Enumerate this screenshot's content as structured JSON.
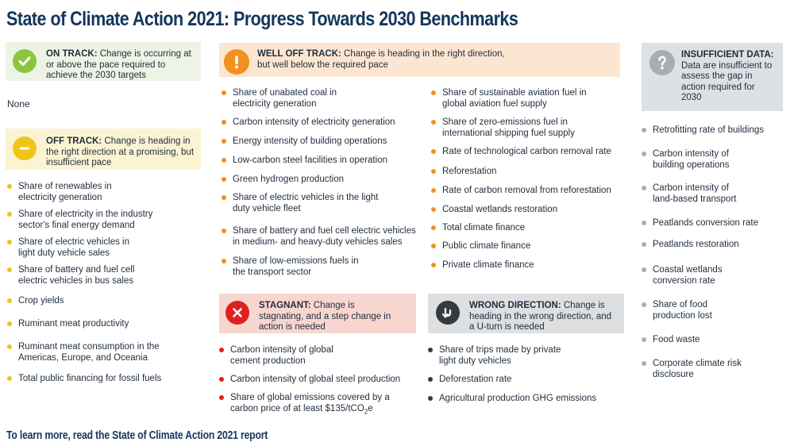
{
  "title": "State of Climate Action 2021: Progress Towards 2030 Benchmarks",
  "footer": "To learn more, read the State of Climate Action 2021 report",
  "colors": {
    "on_track": "#8cc63e",
    "off_track": "#f0c419",
    "well_off_track": "#f29020",
    "stagnant": "#e02020",
    "wrong_direction": "#333a40",
    "insufficient_data": "#a7adb2",
    "title": "#14365c"
  },
  "on_track": {
    "icon": "checkmark-icon",
    "label": "ON TRACK:",
    "description": "Change is occurring at or above the pace required to achieve the 2030 targets",
    "items_text": "None"
  },
  "off_track": {
    "icon": "minus-icon",
    "label": "OFF TRACK:",
    "description": "Change is heading in the right direction at a promising, but insufficient pace",
    "items": [
      "Share of renewables in electricity generation",
      "Share of electricity in the industry sector's final energy demand",
      "Share of electric vehicles in light duty vehicle sales",
      "Share of battery and fuel cell electric vehicles in bus sales",
      "Crop yields",
      "Ruminant meat productivity",
      "Ruminant meat consumption in the Americas, Europe, and Oceania",
      "Total public financing for fossil fuels"
    ]
  },
  "well_off_track": {
    "icon": "exclamation-icon",
    "label": "WELL OFF TRACK:",
    "description": "Change is heading in the right direction, but well below the required pace",
    "items_col1": [
      "Share of unabated coal in electricity generation",
      "Carbon intensity of electricity generation",
      "Energy intensity of building operations",
      "Low-carbon steel facilities in operation",
      "Green hydrogen production",
      "Share of electric vehicles in the light duty vehicle fleet",
      "Share of battery and fuel cell electric vehicles in medium- and heavy-duty vehicles sales",
      "Share of low-emissions fuels in the transport sector"
    ],
    "items_col2": [
      "Share of sustainable aviation fuel in global aviation fuel supply",
      "Share of zero-emissions fuel in international shipping fuel supply",
      "Rate of technological carbon removal rate",
      "Reforestation",
      "Rate of carbon removal from reforestation",
      "Coastal wetlands restoration",
      "Total climate finance",
      "Public climate finance",
      "Private climate finance"
    ]
  },
  "stagnant": {
    "icon": "x-icon",
    "label": "STAGNANT:",
    "description": "Change is stagnating, and a step change in action is needed",
    "items": [
      "Carbon intensity of global cement production",
      "Carbon intensity of global steel production",
      "Share of global emissions covered by a carbon price of at least $135/tCO"
    ],
    "subscript": "2",
    "suffix": "e"
  },
  "wrong_direction": {
    "icon": "u-turn-icon",
    "label": "WRONG DIRECTION:",
    "description": "Change is heading in the wrong direction, and a U-turn is needed",
    "items": [
      "Share of trips made by private light duty vehicles",
      "Deforestation rate",
      "Agricultural production GHG emissions"
    ]
  },
  "insufficient_data": {
    "icon": "question-icon",
    "label": "INSUFFICIENT DATA:",
    "description": "Data are insufficient to assess the gap in action required for 2030",
    "items": [
      "Retrofitting rate of buildings",
      "Carbon intensity of building operations",
      "Carbon intensity of land-based transport",
      "Peatlands conversion rate",
      "Peatlands restoration",
      "Coastal wetlands conversion rate",
      "Share of food production lost",
      "Food waste",
      "Corporate climate risk disclosure"
    ]
  }
}
